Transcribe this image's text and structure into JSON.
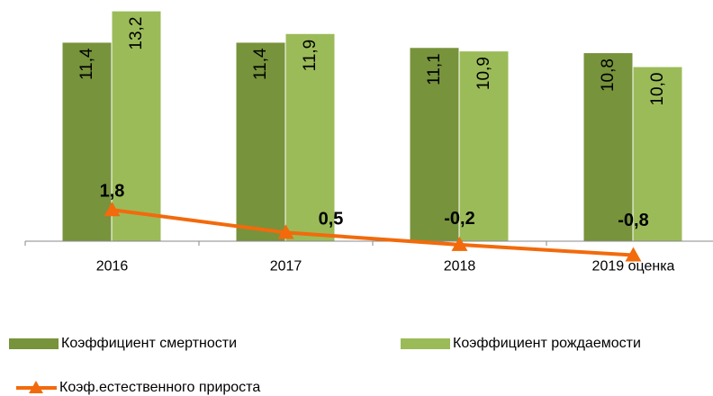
{
  "chart_data": {
    "type": "bar",
    "categories": [
      "2016",
      "2017",
      "2018",
      "2019 оценка"
    ],
    "series": [
      {
        "name": "Коэффициент смертности",
        "color": "#77933c",
        "values": [
          11.4,
          11.4,
          11.1,
          10.8
        ],
        "value_labels": [
          "11,4",
          "11,4",
          "11,1",
          "10,8"
        ]
      },
      {
        "name": "Коэффициент рождаемости",
        "color": "#9bbb59",
        "values": [
          13.2,
          11.9,
          10.9,
          10.0
        ],
        "value_labels": [
          "13,2",
          "11,9",
          "10,9",
          "10,0"
        ]
      },
      {
        "name": "Коэф.естественного прироста",
        "type": "line",
        "color": "#f26a0c",
        "values": [
          1.8,
          0.5,
          -0.2,
          -0.8
        ],
        "value_labels": [
          "1,8",
          "0,5",
          "-0,2",
          "-0,8"
        ]
      }
    ],
    "ylim": [
      -1,
      13.5
    ]
  }
}
